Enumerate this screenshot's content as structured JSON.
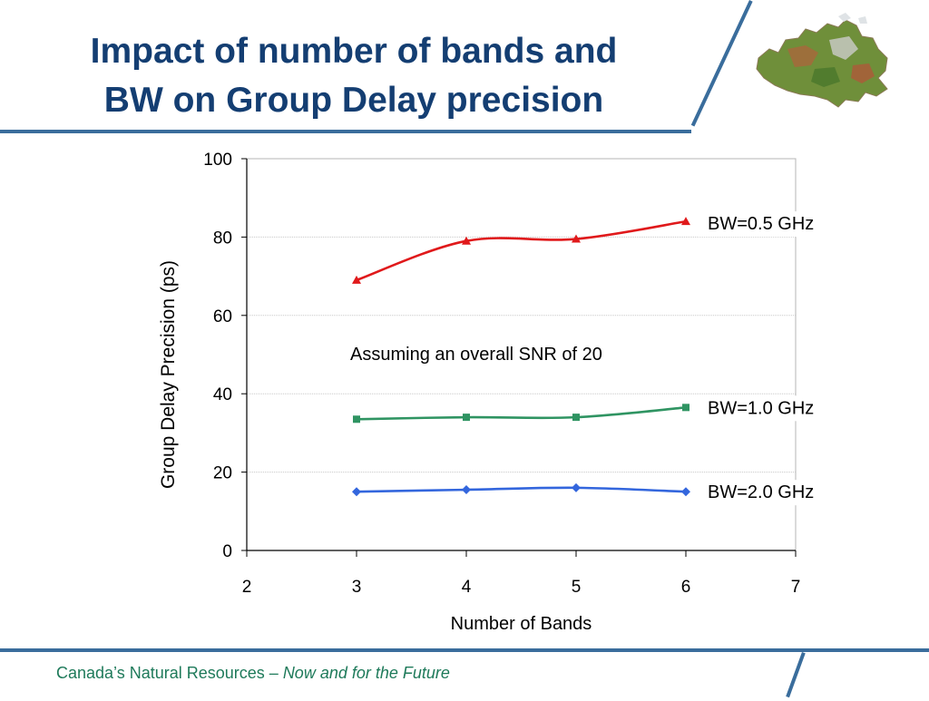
{
  "slide": {
    "title_line1": "Impact of number of bands and",
    "title_line2": "BW on Group Delay precision",
    "footer_org": "Canada’s Natural Resources – ",
    "footer_tagline": "Now and for the Future"
  },
  "colors": {
    "title": "#143e72",
    "rule": "#3a6d9c",
    "footer": "#1e7a5a"
  },
  "icons": {
    "logo": "canada-map-icon"
  },
  "chart_data": {
    "type": "line",
    "title": "",
    "xlabel": "Number of Bands",
    "ylabel": "Group Delay Precision (ps)",
    "xlim": [
      2,
      7
    ],
    "ylim": [
      0,
      100
    ],
    "xticks": [
      2,
      3,
      4,
      5,
      6,
      7
    ],
    "yticks": [
      0,
      20,
      40,
      60,
      80,
      100
    ],
    "grid": "horizontal",
    "annotation": "Assuming an overall SNR of 20",
    "series": [
      {
        "name": "BW=0.5 GHz",
        "color": "#e0191b",
        "marker": "triangle",
        "x": [
          3,
          4,
          5,
          6
        ],
        "values": [
          69,
          79,
          79.5,
          84
        ]
      },
      {
        "name": "BW=1.0 GHz",
        "color": "#2f9462",
        "marker": "square",
        "x": [
          3,
          4,
          5,
          6
        ],
        "values": [
          33.5,
          34,
          34,
          36.5
        ]
      },
      {
        "name": "BW=2.0 GHz",
        "color": "#3366dd",
        "marker": "diamond",
        "x": [
          3,
          4,
          5,
          6
        ],
        "values": [
          15,
          15.5,
          16,
          15
        ]
      }
    ]
  }
}
